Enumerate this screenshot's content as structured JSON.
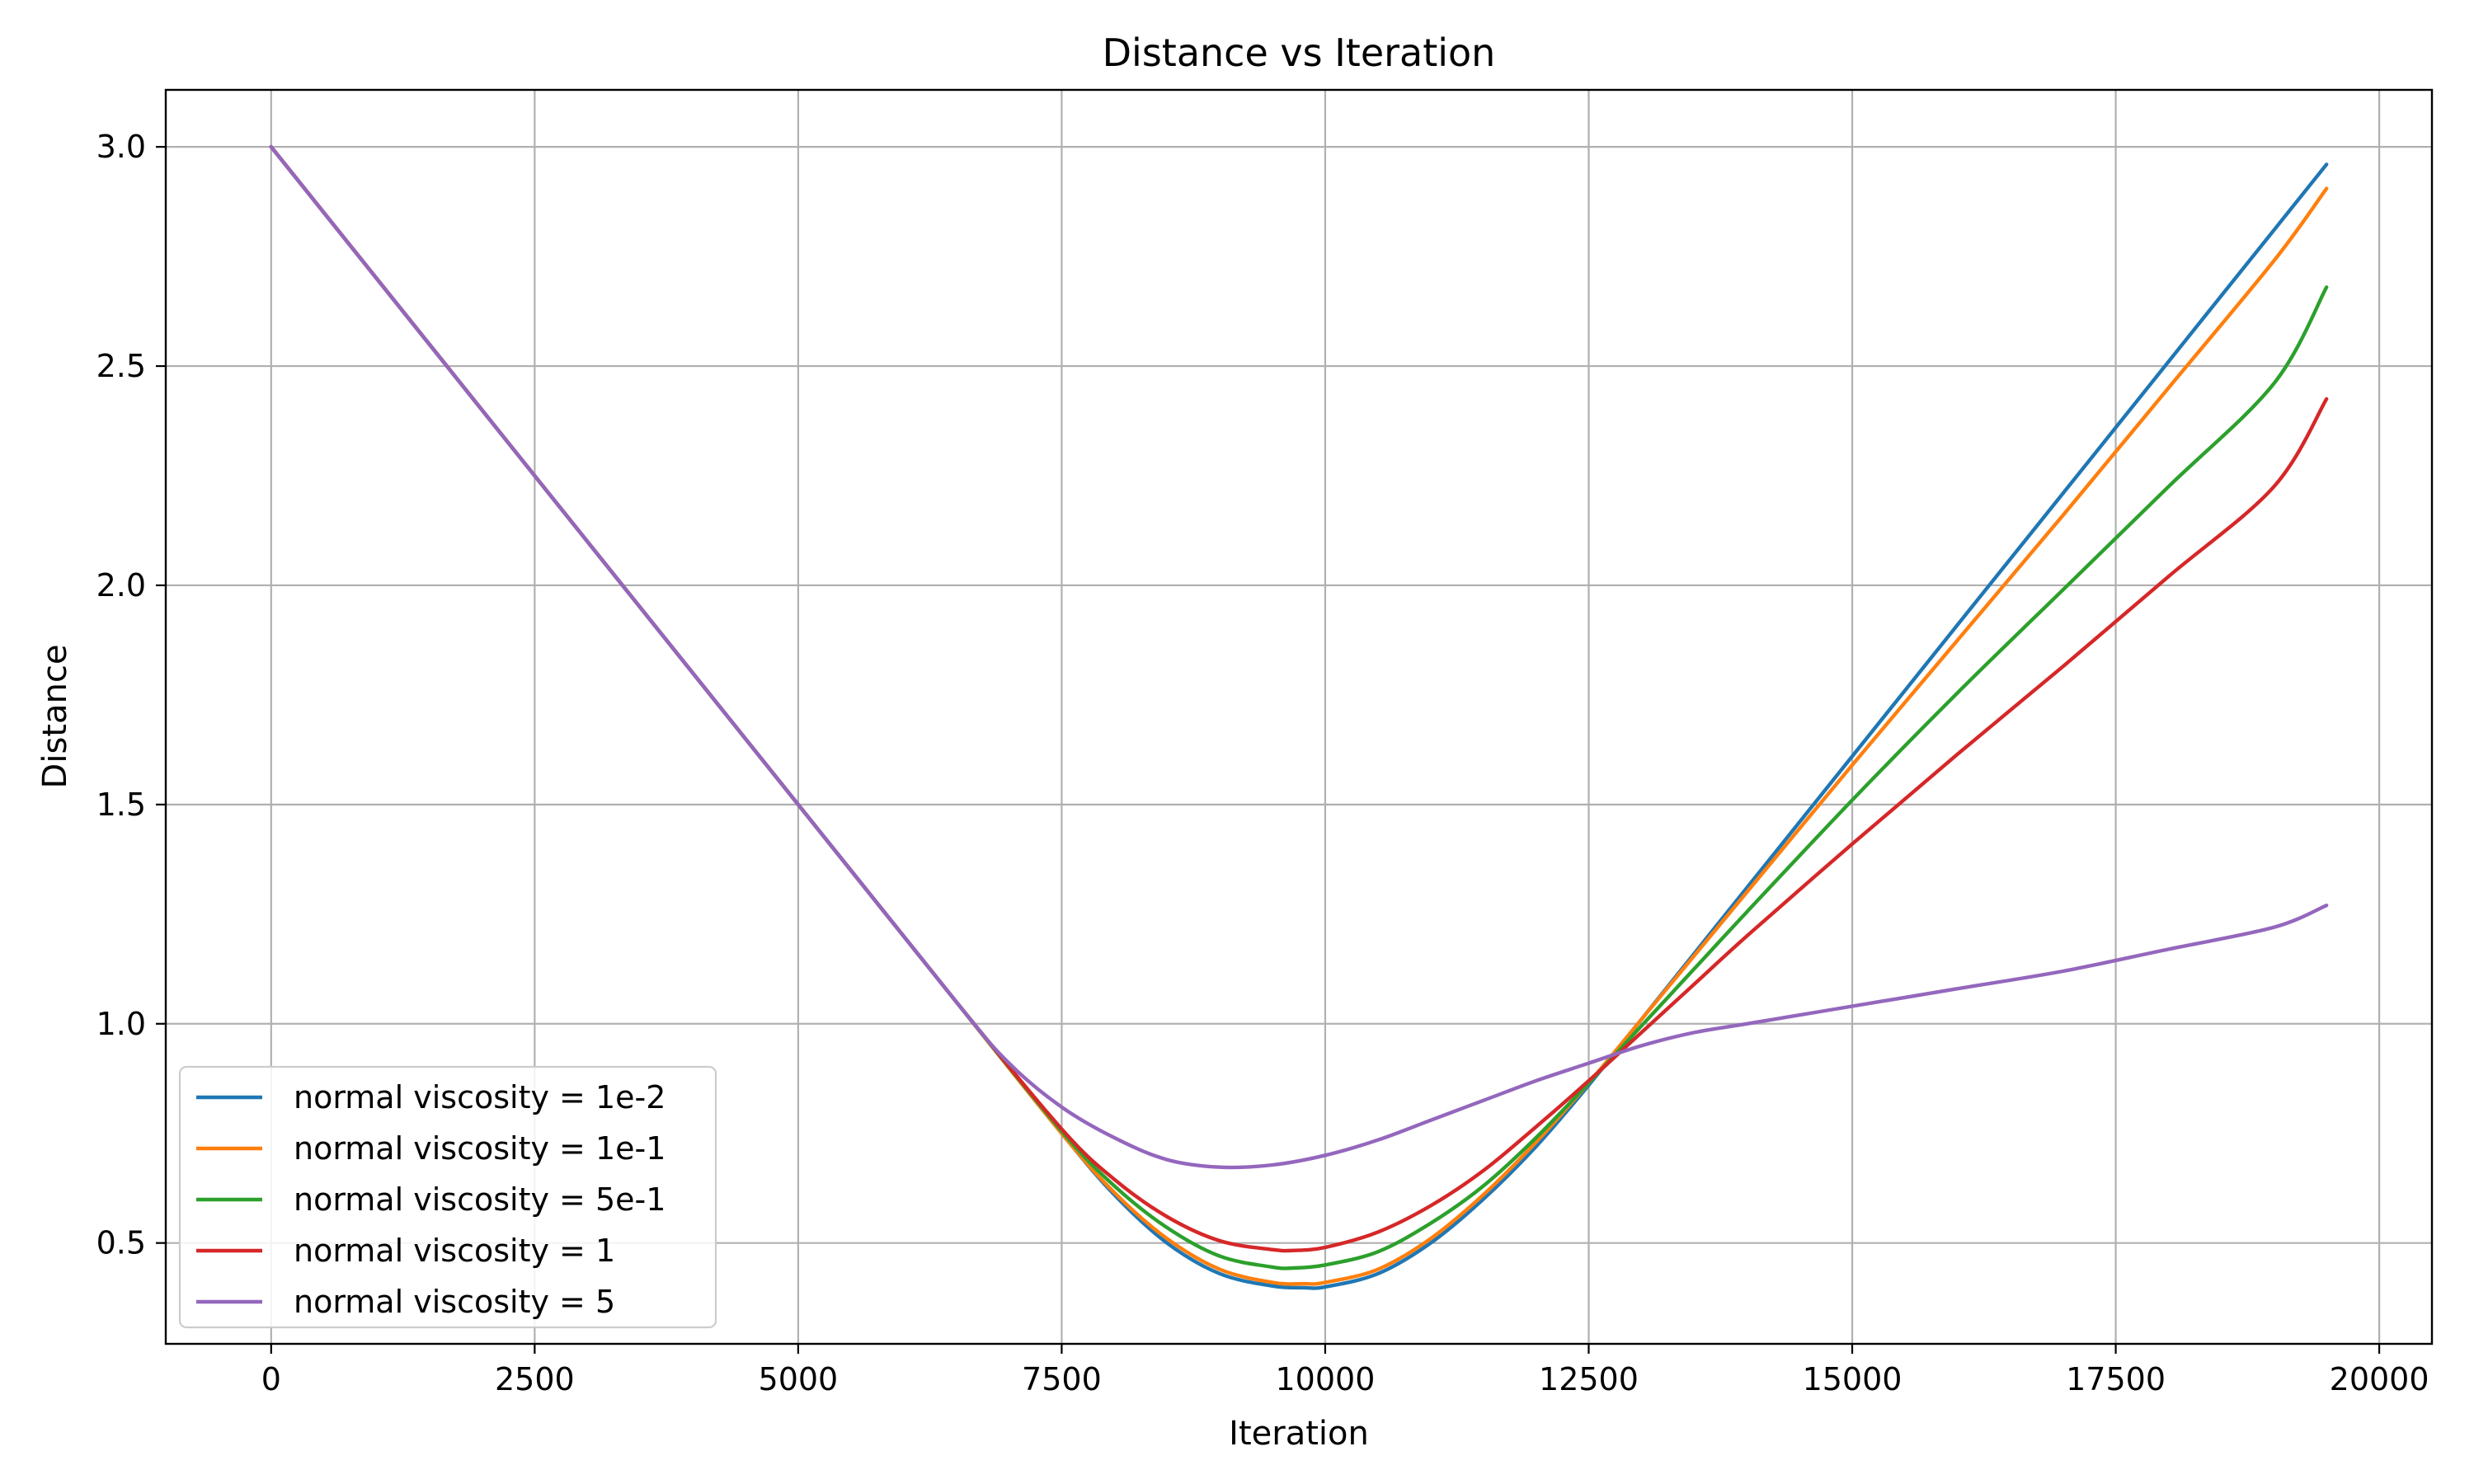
{
  "chart_data": {
    "type": "line",
    "title": "Distance vs Iteration",
    "xlabel": "Iteration",
    "ylabel": "Distance",
    "xlim": [
      -1000,
      20500
    ],
    "ylim": [
      0.27,
      3.13
    ],
    "xticks": [
      0,
      2500,
      5000,
      7500,
      10000,
      12500,
      15000,
      17500,
      20000
    ],
    "yticks": [
      0.5,
      1.0,
      1.5,
      2.0,
      2.5,
      3.0
    ],
    "xtick_labels": [
      "0",
      "2500",
      "5000",
      "7500",
      "10000",
      "12500",
      "15000",
      "17500",
      "20000"
    ],
    "ytick_labels": [
      "0.5",
      "1.0",
      "1.5",
      "2.0",
      "2.5",
      "3.0"
    ],
    "grid": true,
    "legend_position": "lower-left",
    "series": [
      {
        "name": "normal viscosity = 1e-2",
        "color": "#1f77b4",
        "x": [
          0,
          2500,
          5000,
          6500,
          7500,
          8000,
          8500,
          9000,
          9500,
          9800,
          10000,
          10500,
          11000,
          11500,
          12000,
          12500,
          13000,
          13500,
          14000,
          15000,
          16000,
          17000,
          18000,
          19000,
          19500
        ],
        "y": [
          3.0,
          2.25,
          1.5,
          1.05,
          0.75,
          0.61,
          0.5,
          0.43,
          0.402,
          0.398,
          0.4,
          0.43,
          0.5,
          0.6,
          0.72,
          0.86,
          1.01,
          1.16,
          1.31,
          1.61,
          1.91,
          2.21,
          2.51,
          2.81,
          2.96
        ]
      },
      {
        "name": "normal viscosity = 1e-1",
        "color": "#ff7f0e",
        "x": [
          0,
          2500,
          5000,
          6500,
          7500,
          8000,
          8500,
          9000,
          9500,
          9800,
          10000,
          10500,
          11000,
          11500,
          12000,
          12500,
          13000,
          13500,
          14000,
          15000,
          16000,
          17000,
          18000,
          19000,
          19500
        ],
        "y": [
          3.0,
          2.25,
          1.5,
          1.05,
          0.75,
          0.615,
          0.51,
          0.44,
          0.41,
          0.407,
          0.41,
          0.44,
          0.51,
          0.61,
          0.73,
          0.865,
          1.01,
          1.155,
          1.3,
          1.59,
          1.875,
          2.16,
          2.45,
          2.74,
          2.905
        ]
      },
      {
        "name": "normal viscosity = 5e-1",
        "color": "#2ca02c",
        "x": [
          0,
          2500,
          5000,
          6500,
          7500,
          8000,
          8500,
          9000,
          9500,
          9700,
          10000,
          10500,
          11000,
          11500,
          12000,
          12500,
          13000,
          13500,
          14000,
          15000,
          16000,
          17000,
          18000,
          19000,
          19500
        ],
        "y": [
          3.0,
          2.25,
          1.5,
          1.05,
          0.755,
          0.63,
          0.535,
          0.47,
          0.445,
          0.443,
          0.45,
          0.48,
          0.545,
          0.63,
          0.74,
          0.865,
          0.995,
          1.125,
          1.255,
          1.51,
          1.755,
          1.99,
          2.225,
          2.46,
          2.68
        ]
      },
      {
        "name": "normal viscosity = 1",
        "color": "#d62728",
        "x": [
          0,
          2500,
          5000,
          6500,
          7500,
          8000,
          8500,
          9000,
          9500,
          9700,
          10000,
          10500,
          11000,
          11500,
          12000,
          12500,
          13000,
          13500,
          14000,
          15000,
          16000,
          17000,
          18000,
          19000,
          19500
        ],
        "y": [
          3.0,
          2.25,
          1.5,
          1.05,
          0.76,
          0.645,
          0.56,
          0.505,
          0.485,
          0.483,
          0.49,
          0.525,
          0.585,
          0.665,
          0.765,
          0.87,
          0.98,
          1.09,
          1.2,
          1.41,
          1.615,
          1.815,
          2.02,
          2.225,
          2.425
        ]
      },
      {
        "name": "normal viscosity = 5",
        "color": "#9467bd",
        "x": [
          0,
          2500,
          5000,
          6500,
          7000,
          7500,
          8000,
          8500,
          9000,
          9500,
          10000,
          10500,
          11000,
          11500,
          12000,
          12500,
          13000,
          13500,
          14000,
          15000,
          16000,
          17000,
          18000,
          19000,
          19500
        ],
        "y": [
          3.0,
          2.25,
          1.5,
          1.05,
          0.91,
          0.81,
          0.74,
          0.69,
          0.673,
          0.678,
          0.7,
          0.735,
          0.78,
          0.825,
          0.87,
          0.91,
          0.95,
          0.98,
          1.0,
          1.04,
          1.08,
          1.12,
          1.17,
          1.22,
          1.27
        ]
      }
    ]
  }
}
